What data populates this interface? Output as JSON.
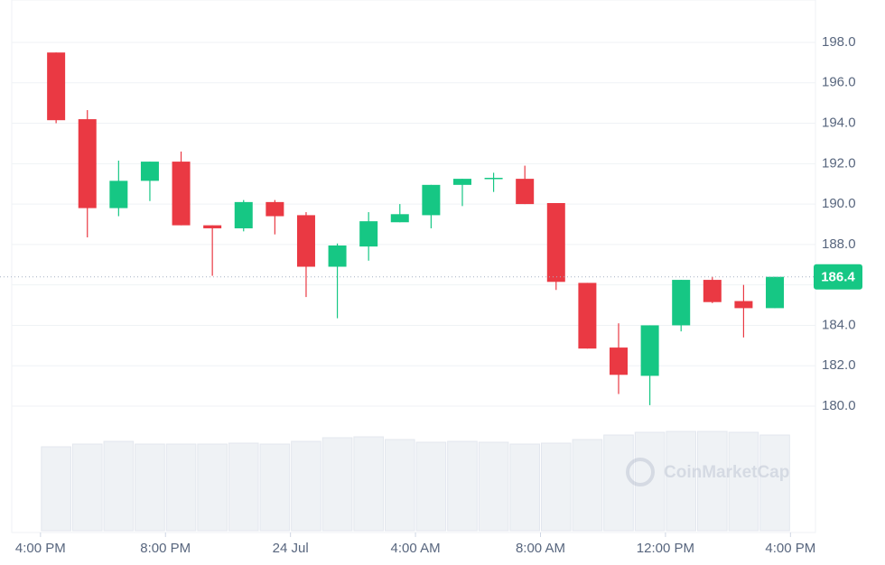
{
  "chart_data": {
    "type": "candlestick",
    "x": [
      0.5,
      1.5,
      2.5,
      3.5,
      4.5,
      5.5,
      6.5,
      7.5,
      8.5,
      9.5,
      10.5,
      11.5,
      12.5,
      13.5,
      14.5,
      15.5,
      16.5,
      17.5,
      18.5,
      19.5,
      20.5,
      21.5,
      22.5,
      23.5
    ],
    "open": [
      197.5,
      194.2,
      189.8,
      191.15,
      192.1,
      188.95,
      188.8,
      190.1,
      189.45,
      186.9,
      187.9,
      189.1,
      189.45,
      190.95,
      191.25,
      191.25,
      190.05,
      186.1,
      182.9,
      181.5,
      184.0,
      186.25,
      185.2,
      184.85
    ],
    "high": [
      197.5,
      194.65,
      192.15,
      192.1,
      192.6,
      188.95,
      190.2,
      190.2,
      189.6,
      188.05,
      189.6,
      190.0,
      190.95,
      191.25,
      191.55,
      191.9,
      190.05,
      186.1,
      184.1,
      184.0,
      186.25,
      186.4,
      186.0,
      186.4
    ],
    "low": [
      194.0,
      188.35,
      189.4,
      190.15,
      188.95,
      186.45,
      188.65,
      188.5,
      185.4,
      184.35,
      187.2,
      189.1,
      188.8,
      189.9,
      190.6,
      190.0,
      185.75,
      182.85,
      180.6,
      180.05,
      183.7,
      185.1,
      183.4,
      184.85
    ],
    "close": [
      194.15,
      189.8,
      191.15,
      192.1,
      188.95,
      188.8,
      190.1,
      189.4,
      186.9,
      187.95,
      189.15,
      189.5,
      190.95,
      191.25,
      191.3,
      190.0,
      186.15,
      182.85,
      181.55,
      184.0,
      186.25,
      185.15,
      184.85,
      186.4
    ],
    "volume": [
      93,
      96,
      99,
      96,
      96,
      96,
      97,
      96,
      99,
      103,
      104,
      101,
      98,
      99,
      98,
      96,
      97,
      101,
      106,
      109,
      110,
      110,
      109,
      106
    ],
    "volume_lim": [
      0,
      110
    ],
    "up_color": "#16c784",
    "down_color": "#ea3943",
    "volume_color": "#eff2f5",
    "xlim": [
      -0.92,
      24.8
    ],
    "xticks": [
      {
        "value": 0,
        "label": "4:00 PM"
      },
      {
        "value": 4,
        "label": "8:00 PM"
      },
      {
        "value": 8,
        "label": "24 Jul"
      },
      {
        "value": 12,
        "label": "4:00 AM"
      },
      {
        "value": 16,
        "label": "8:00 AM"
      },
      {
        "value": 20,
        "label": "12:00 PM"
      },
      {
        "value": 24,
        "label": "4:00 PM"
      }
    ],
    "ylim": [
      179,
      200
    ],
    "yticks": [
      {
        "value": 180,
        "label": "180.0"
      },
      {
        "value": 182,
        "label": "182.0"
      },
      {
        "value": 184,
        "label": "184.0"
      },
      {
        "value": 186,
        "label": "186.0"
      },
      {
        "value": 188,
        "label": "188.0"
      },
      {
        "value": 190,
        "label": "190.0"
      },
      {
        "value": 192,
        "label": "192.0"
      },
      {
        "value": 194,
        "label": "194.0"
      },
      {
        "value": 196,
        "label": "196.0"
      },
      {
        "value": 198,
        "label": "198.0"
      }
    ],
    "last_price": 186.4,
    "watermark": "CoinMarketCap",
    "grid": true
  }
}
